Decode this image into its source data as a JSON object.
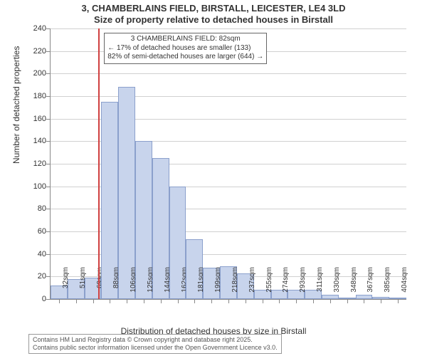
{
  "title_main": "3, CHAMBERLAINS FIELD, BIRSTALL, LEICESTER, LE4 3LD",
  "title_sub": "Size of property relative to detached houses in Birstall",
  "y_axis": {
    "title": "Number of detached properties",
    "min": 0,
    "max": 240,
    "step": 20,
    "ticks": [
      0,
      20,
      40,
      60,
      80,
      100,
      120,
      140,
      160,
      180,
      200,
      220,
      240
    ]
  },
  "x_axis": {
    "title": "Distribution of detached houses by size in Birstall",
    "labels": [
      "32sqm",
      "51sqm",
      "69sqm",
      "88sqm",
      "106sqm",
      "125sqm",
      "144sqm",
      "162sqm",
      "181sqm",
      "199sqm",
      "218sqm",
      "237sqm",
      "255sqm",
      "274sqm",
      "293sqm",
      "311sqm",
      "330sqm",
      "348sqm",
      "367sqm",
      "385sqm",
      "404sqm"
    ]
  },
  "chart": {
    "type": "histogram",
    "bar_fill": "#c8d4ec",
    "bar_stroke": "#8ba0cc",
    "grid_color": "#d0d0d0",
    "background": "#ffffff",
    "values": [
      12,
      18,
      19,
      175,
      188,
      140,
      125,
      100,
      53,
      28,
      29,
      23,
      8,
      8,
      8,
      8,
      4,
      1,
      4,
      2,
      1
    ],
    "marker": {
      "position_sqm": 82,
      "color": "#d04040"
    }
  },
  "annotation": {
    "line1": "3 CHAMBERLAINS FIELD: 82sqm",
    "line2": "← 17% of detached houses are smaller (133)",
    "line3": "82% of semi-detached houses are larger (644) →"
  },
  "footer": {
    "line1": "Contains HM Land Registry data © Crown copyright and database right 2025.",
    "line2": "Contains public sector information licensed under the Open Government Licence v3.0."
  }
}
